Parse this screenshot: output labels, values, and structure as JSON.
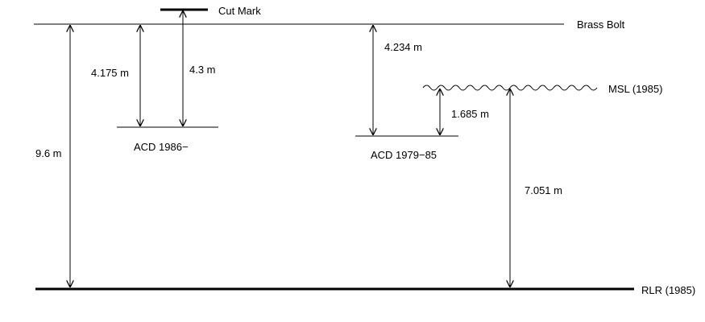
{
  "levels": {
    "cut_mark": "Cut Mark",
    "brass_bolt": "Brass Bolt",
    "msl": "MSL (1985)",
    "rlr": "RLR (1985)",
    "acd_1986": "ACD 1986−",
    "acd_1979": "ACD 1979−85"
  },
  "distances": {
    "rlr_to_brass_bolt": "9.6 m",
    "brass_bolt_to_acd_1986": "4.175 m",
    "cut_mark_to_acd_1986": "4.3 m",
    "brass_bolt_to_acd_1979": "4.234 m",
    "acd_1979_to_msl": "1.685 m",
    "rlr_to_msl": "7.051 m"
  }
}
